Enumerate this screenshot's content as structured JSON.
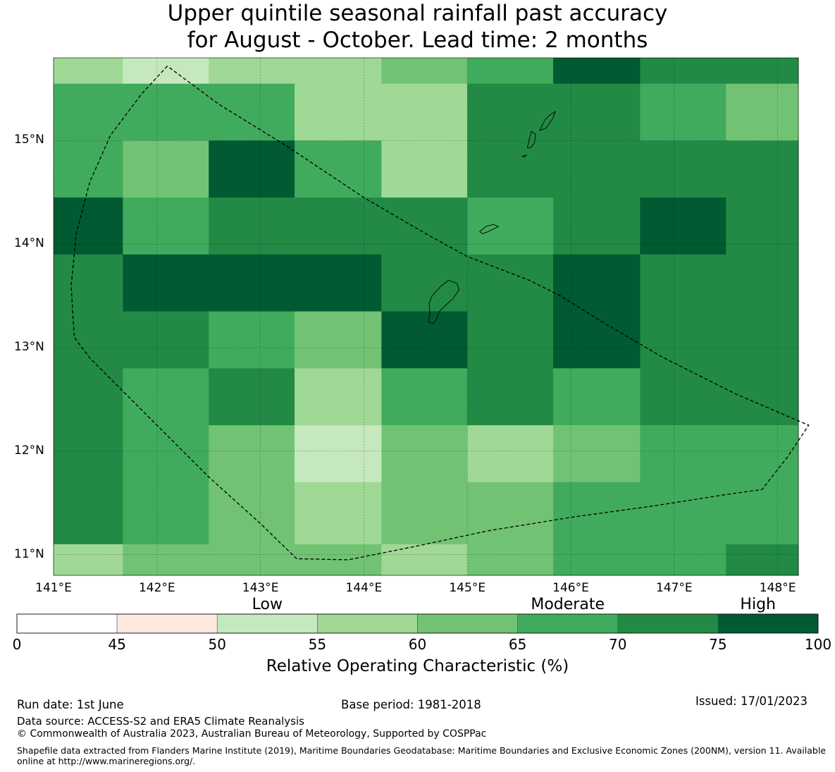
{
  "title_line1": "Upper quintile seasonal rainfall past accuracy",
  "title_line2": "for August - October. Lead time: 2 months",
  "map": {
    "lon_range": [
      141.0,
      148.2
    ],
    "lat_range": [
      10.8,
      15.8
    ],
    "lat_ticks": [
      {
        "value": 15,
        "label": "15°N"
      },
      {
        "value": 14,
        "label": "14°N"
      },
      {
        "value": 13,
        "label": "13°N"
      },
      {
        "value": 12,
        "label": "12°N"
      },
      {
        "value": 11,
        "label": "11°N"
      }
    ],
    "lon_ticks": [
      {
        "value": 141,
        "label": "141°E"
      },
      {
        "value": 142,
        "label": "142°E"
      },
      {
        "value": 143,
        "label": "143°E"
      },
      {
        "value": 144,
        "label": "144°E"
      },
      {
        "value": 145,
        "label": "145°E"
      },
      {
        "value": 146,
        "label": "146°E"
      },
      {
        "value": 147,
        "label": "147°E"
      },
      {
        "value": 148,
        "label": "148°E"
      }
    ],
    "grid_columns": [
      141.0,
      141.67,
      142.5,
      143.33,
      144.17,
      145.0,
      145.83,
      146.67,
      147.5,
      148.2
    ],
    "grid_rows": [
      15.8,
      15.55,
      15.0,
      14.45,
      13.9,
      13.35,
      12.8,
      12.25,
      11.7,
      11.1,
      10.8
    ],
    "roc_bins": [
      [
        55,
        50,
        55,
        55,
        60,
        65,
        75,
        70,
        70
      ],
      [
        65,
        65,
        65,
        55,
        55,
        70,
        70,
        65,
        60
      ],
      [
        65,
        60,
        75,
        65,
        55,
        70,
        70,
        70,
        70
      ],
      [
        75,
        65,
        70,
        70,
        70,
        65,
        70,
        75,
        70
      ],
      [
        70,
        75,
        75,
        75,
        70,
        70,
        75,
        70,
        70
      ],
      [
        70,
        70,
        65,
        60,
        75,
        70,
        75,
        70,
        70
      ],
      [
        70,
        65,
        70,
        55,
        65,
        70,
        65,
        70,
        70
      ],
      [
        70,
        65,
        60,
        50,
        60,
        55,
        60,
        65,
        65
      ],
      [
        70,
        65,
        60,
        55,
        60,
        60,
        65,
        65,
        65
      ],
      [
        55,
        60,
        60,
        60,
        55,
        60,
        65,
        65,
        70
      ]
    ],
    "boundary": [
      [
        142.1,
        15.72
      ],
      [
        141.85,
        15.45
      ],
      [
        141.55,
        15.05
      ],
      [
        141.35,
        14.6
      ],
      [
        141.22,
        14.1
      ],
      [
        141.17,
        13.6
      ],
      [
        141.2,
        13.1
      ],
      [
        141.35,
        12.9
      ],
      [
        141.9,
        12.35
      ],
      [
        142.5,
        11.75
      ],
      [
        143.0,
        11.3
      ],
      [
        143.35,
        10.96
      ],
      [
        143.85,
        10.95
      ],
      [
        144.5,
        11.08
      ],
      [
        145.2,
        11.23
      ],
      [
        146.0,
        11.36
      ],
      [
        146.8,
        11.47
      ],
      [
        147.5,
        11.58
      ],
      [
        147.85,
        11.63
      ],
      [
        148.1,
        11.95
      ],
      [
        148.3,
        12.25
      ],
      [
        147.6,
        12.55
      ],
      [
        146.9,
        12.9
      ],
      [
        146.3,
        13.25
      ],
      [
        145.9,
        13.5
      ],
      [
        145.6,
        13.65
      ],
      [
        145.0,
        13.88
      ],
      [
        144.6,
        14.1
      ],
      [
        144.0,
        14.45
      ],
      [
        143.25,
        14.95
      ],
      [
        142.6,
        15.35
      ],
      [
        142.1,
        15.72
      ]
    ],
    "islands": [
      [
        [
          144.62,
          13.25
        ],
        [
          144.64,
          13.33
        ],
        [
          144.63,
          13.43
        ],
        [
          144.66,
          13.5
        ],
        [
          144.75,
          13.6
        ],
        [
          144.82,
          13.65
        ],
        [
          144.9,
          13.62
        ],
        [
          144.92,
          13.56
        ],
        [
          144.86,
          13.47
        ],
        [
          144.8,
          13.42
        ],
        [
          144.73,
          13.35
        ],
        [
          144.7,
          13.27
        ],
        [
          144.67,
          13.23
        ]
      ],
      [
        [
          145.12,
          14.12
        ],
        [
          145.18,
          14.17
        ],
        [
          145.25,
          14.19
        ],
        [
          145.3,
          14.17
        ],
        [
          145.22,
          14.13
        ],
        [
          145.15,
          14.1
        ]
      ],
      [
        [
          145.58,
          14.93
        ],
        [
          145.6,
          15.02
        ],
        [
          145.62,
          15.09
        ],
        [
          145.66,
          15.06
        ],
        [
          145.65,
          14.98
        ],
        [
          145.61,
          14.93
        ]
      ],
      [
        [
          145.7,
          15.1
        ],
        [
          145.75,
          15.2
        ],
        [
          145.8,
          15.25
        ],
        [
          145.85,
          15.28
        ],
        [
          145.83,
          15.22
        ],
        [
          145.76,
          15.12
        ]
      ],
      [
        [
          145.53,
          14.85
        ],
        [
          145.57,
          14.86
        ],
        [
          145.55,
          14.84
        ]
      ]
    ]
  },
  "colorbar": {
    "boundaries": [
      0,
      45,
      50,
      55,
      60,
      65,
      70,
      75,
      100
    ],
    "colors": [
      "#ffffff",
      "#fee9e0",
      "#c6e8bf",
      "#a0d896",
      "#71c373",
      "#41ab5d",
      "#228a45",
      "#005a32"
    ],
    "tick_labels": [
      "0",
      "45",
      "50",
      "55",
      "60",
      "65",
      "70",
      "75",
      "100"
    ],
    "categories": [
      {
        "label": "Low",
        "at": 52.5
      },
      {
        "label": "Moderate",
        "at": 67.5
      },
      {
        "label": "High",
        "at": 85
      }
    ],
    "label": "Relative Operating Characteristic (%)"
  },
  "footer": {
    "run_date": "Run date: 1st June",
    "base_period": "Base period: 1981-2018",
    "issued": "Issued: 17/01/2023",
    "data_source": "Data source: ACCESS-S2 and ERA5 Climate Reanalysis",
    "copyright": "© Commonwealth of Australia 2023, Australian Bureau of Meteorology, Supported by COSPPac",
    "shapefile": "Shapefile data extracted from Flanders Marine Institute (2019), Maritime Boundaries Geodatabase: Maritime Boundaries and Exclusive Economic Zones (200NM), version 11. Available online at http://www.marineregions.org/."
  }
}
